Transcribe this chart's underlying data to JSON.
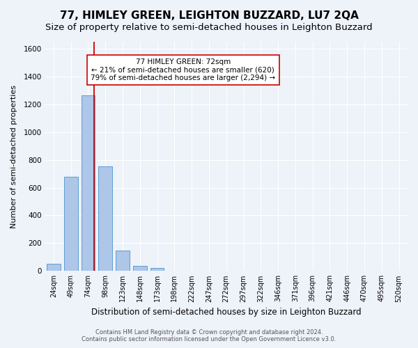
{
  "title": "77, HIMLEY GREEN, LEIGHTON BUZZARD, LU7 2QA",
  "subtitle": "Size of property relative to semi-detached houses in Leighton Buzzard",
  "xlabel": "Distribution of semi-detached houses by size in Leighton Buzzard",
  "ylabel": "Number of semi-detached properties",
  "footer_line1": "Contains HM Land Registry data © Crown copyright and database right 2024.",
  "footer_line2": "Contains public sector information licensed under the Open Government Licence v3.0.",
  "bar_labels": [
    "24sqm",
    "49sqm",
    "74sqm",
    "98sqm",
    "123sqm",
    "148sqm",
    "173sqm",
    "198sqm",
    "222sqm",
    "247sqm",
    "272sqm",
    "297sqm",
    "322sqm",
    "346sqm",
    "371sqm",
    "396sqm",
    "421sqm",
    "446sqm",
    "470sqm",
    "495sqm",
    "520sqm"
  ],
  "bar_values": [
    50,
    680,
    1265,
    755,
    145,
    35,
    20,
    0,
    0,
    0,
    0,
    0,
    0,
    0,
    0,
    0,
    0,
    0,
    0,
    0,
    0
  ],
  "bar_color": "#aec6e8",
  "bar_edge_color": "#5a9fd4",
  "highlight_bar_index": 2,
  "annotation_title": "77 HIMLEY GREEN: 72sqm",
  "annotation_line1": "← 21% of semi-detached houses are smaller (620)",
  "annotation_line2": "79% of semi-detached houses are larger (2,294) →",
  "annotation_box_color": "#ffffff",
  "annotation_box_edge_color": "#cc0000",
  "vline_color": "#cc0000",
  "ylim": [
    0,
    1650
  ],
  "yticks": [
    0,
    200,
    400,
    600,
    800,
    1000,
    1200,
    1400,
    1600
  ],
  "background_color": "#eef2f9",
  "grid_color": "#ffffff",
  "title_fontsize": 11,
  "subtitle_fontsize": 9.5
}
